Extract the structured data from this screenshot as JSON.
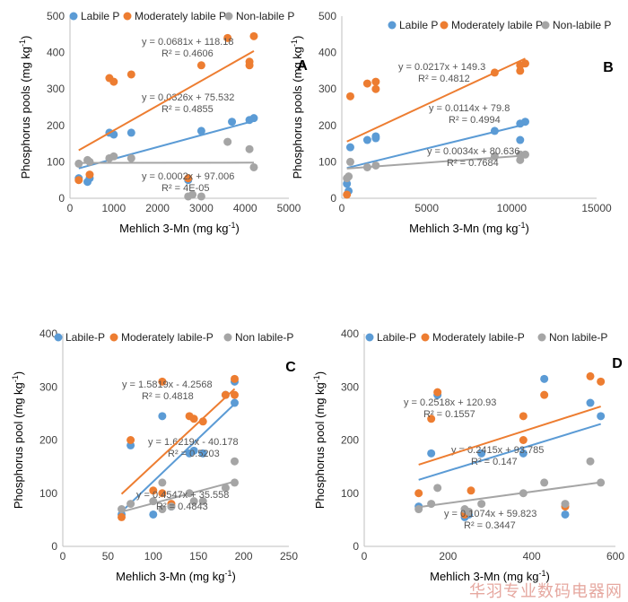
{
  "colors": {
    "labile": "#5b9bd5",
    "moderate": "#ed7d31",
    "nonlabile": "#a5a5a5"
  },
  "watermark": "华羽专业数码电器网",
  "chart_data": [
    {
      "panel": "A",
      "type": "scatter",
      "legend": [
        "Labile P",
        "Moderately labile P",
        "Non-labile P"
      ],
      "ylabel": "Phosphorus pools (mg kg-1)",
      "xlabel": "Mehlich 3-Mn (mg kg-1)",
      "xlim": [
        0,
        5000
      ],
      "ylim": [
        0,
        500
      ],
      "xticks": [
        0,
        1000,
        2000,
        3000,
        4000,
        5000
      ],
      "yticks": [
        0,
        100,
        200,
        300,
        400,
        500
      ],
      "series": [
        {
          "name": "Labile P",
          "color_key": "labile",
          "points": [
            [
              200,
              55
            ],
            [
              400,
              45
            ],
            [
              450,
              55
            ],
            [
              900,
              180
            ],
            [
              1000,
              175
            ],
            [
              1400,
              180
            ],
            [
              2700,
              50
            ],
            [
              3000,
              185
            ],
            [
              3700,
              210
            ],
            [
              4100,
              215
            ],
            [
              4200,
              220
            ]
          ],
          "fit": {
            "slope": 0.0326,
            "intercept": 75.532,
            "x0": 200,
            "x1": 4200
          },
          "eq": "y = 0.0326x + 75.532",
          "r2": "R² = 0.4855"
        },
        {
          "name": "Moderately labile P",
          "color_key": "moderate",
          "points": [
            [
              200,
              50
            ],
            [
              450,
              65
            ],
            [
              900,
              330
            ],
            [
              1000,
              320
            ],
            [
              1400,
              340
            ],
            [
              2700,
              55
            ],
            [
              3000,
              365
            ],
            [
              3600,
              440
            ],
            [
              4100,
              375
            ],
            [
              4100,
              365
            ],
            [
              4200,
              445
            ]
          ],
          "fit": {
            "slope": 0.0681,
            "intercept": 118.18,
            "x0": 200,
            "x1": 4200
          },
          "eq": "y = 0.0681x + 118.18",
          "r2": "R² = 0.4606"
        },
        {
          "name": "Non-labile P",
          "color_key": "nonlabile",
          "points": [
            [
              200,
              95
            ],
            [
              400,
              105
            ],
            [
              450,
              100
            ],
            [
              900,
              110
            ],
            [
              1000,
              115
            ],
            [
              1400,
              110
            ],
            [
              2700,
              5
            ],
            [
              2800,
              10
            ],
            [
              3000,
              5
            ],
            [
              3600,
              155
            ],
            [
              4100,
              135
            ],
            [
              4200,
              85
            ]
          ],
          "fit": {
            "slope": 0.0002,
            "intercept": 97.006,
            "x0": 200,
            "x1": 4200
          },
          "eq": "y = 0.0002x + 97.006",
          "r2": "R² = 4E-05"
        }
      ]
    },
    {
      "panel": "B",
      "type": "scatter",
      "legend": [
        "Labile P",
        "Moderately labile P",
        "Non-labile P"
      ],
      "ylabel": "Phosphorus pools (mg kg-1)",
      "xlabel": "Mehlich 3-Mn (mg kg-1)",
      "xlim": [
        0,
        15000
      ],
      "ylim": [
        0,
        500
      ],
      "xticks": [
        0,
        5000,
        10000,
        15000
      ],
      "yticks": [
        0,
        100,
        200,
        300,
        400,
        500
      ],
      "series": [
        {
          "name": "Labile P",
          "color_key": "labile",
          "points": [
            [
              300,
              40
            ],
            [
              400,
              20
            ],
            [
              500,
              140
            ],
            [
              1500,
              160
            ],
            [
              2000,
              170
            ],
            [
              2000,
              165
            ],
            [
              9000,
              185
            ],
            [
              10500,
              205
            ],
            [
              10500,
              160
            ],
            [
              10800,
              210
            ]
          ],
          "fit": {
            "slope": 0.0114,
            "intercept": 79.8,
            "x0": 300,
            "x1": 10800
          },
          "eq": "y = 0.0114x + 79.8",
          "r2": "R² = 0.4994"
        },
        {
          "name": "Moderately labile P",
          "color_key": "moderate",
          "points": [
            [
              300,
              10
            ],
            [
              500,
              280
            ],
            [
              1500,
              315
            ],
            [
              2000,
              300
            ],
            [
              2000,
              320
            ],
            [
              9000,
              345
            ],
            [
              10500,
              350
            ],
            [
              10500,
              365
            ],
            [
              10800,
              370
            ]
          ],
          "fit": {
            "slope": 0.0217,
            "intercept": 149.3,
            "x0": 300,
            "x1": 10800
          },
          "eq": "y = 0.0217x + 149.3",
          "r2": "R² = 0.4812"
        },
        {
          "name": "Non-labile P",
          "color_key": "nonlabile",
          "points": [
            [
              300,
              55
            ],
            [
              400,
              60
            ],
            [
              500,
              100
            ],
            [
              1500,
              85
            ],
            [
              2000,
              90
            ],
            [
              9000,
              115
            ],
            [
              10500,
              120
            ],
            [
              10500,
              105
            ],
            [
              10800,
              120
            ]
          ],
          "fit": {
            "slope": 0.0034,
            "intercept": 80.636,
            "x0": 300,
            "x1": 10800
          },
          "eq": "y = 0.0034x + 80.636",
          "r2": "R² = 0.7684"
        }
      ]
    },
    {
      "panel": "C",
      "type": "scatter",
      "legend": [
        "Labile-P",
        "Moderately labile-P",
        "Non labile-P"
      ],
      "ylabel": "Phosphorus pool (mg kg-1)",
      "xlabel": "Mehlich 3-Mn (mg kg-1)",
      "xlim": [
        0,
        250
      ],
      "ylim": [
        0,
        400
      ],
      "xticks": [
        0,
        50,
        100,
        150,
        200,
        250
      ],
      "yticks": [
        0,
        100,
        200,
        300,
        400
      ],
      "series": [
        {
          "name": "Labile-P",
          "color_key": "labile",
          "points": [
            [
              65,
              60
            ],
            [
              75,
              190
            ],
            [
              100,
              60
            ],
            [
              110,
              245
            ],
            [
              120,
              75
            ],
            [
              140,
              175
            ],
            [
              145,
              180
            ],
            [
              155,
              175
            ],
            [
              180,
              285
            ],
            [
              190,
              270
            ],
            [
              190,
              310
            ]
          ],
          "fit": {
            "slope": 1.6219,
            "intercept": -40.178,
            "x0": 65,
            "x1": 190
          },
          "eq": "y = 1.6219x - 40.178",
          "r2": "R² = 0.5203"
        },
        {
          "name": "Moderately labile-P",
          "color_key": "moderate",
          "points": [
            [
              65,
              55
            ],
            [
              75,
              200
            ],
            [
              100,
              105
            ],
            [
              110,
              100
            ],
            [
              110,
              310
            ],
            [
              120,
              80
            ],
            [
              140,
              245
            ],
            [
              145,
              240
            ],
            [
              155,
              235
            ],
            [
              180,
              285
            ],
            [
              190,
              285
            ],
            [
              190,
              315
            ]
          ],
          "fit": {
            "slope": 1.5819,
            "intercept": -4.2568,
            "x0": 65,
            "x1": 190
          },
          "eq": "y = 1.5819x - 4.2568",
          "r2": "R² = 0.4818"
        },
        {
          "name": "Non labile-P",
          "color_key": "nonlabile",
          "points": [
            [
              65,
              70
            ],
            [
              75,
              80
            ],
            [
              100,
              85
            ],
            [
              110,
              70
            ],
            [
              110,
              120
            ],
            [
              120,
              75
            ],
            [
              140,
              100
            ],
            [
              145,
              85
            ],
            [
              155,
              85
            ],
            [
              180,
              110
            ],
            [
              190,
              120
            ],
            [
              190,
              160
            ]
          ],
          "fit": {
            "slope": 0.4547,
            "intercept": 35.558,
            "x0": 65,
            "x1": 190
          },
          "eq": "y = 0.4547x + 35.558",
          "r2": "R² = 0.4843"
        }
      ]
    },
    {
      "panel": "D",
      "type": "scatter",
      "legend": [
        "Labile-P",
        "Moderately labile-P",
        "Non labile-P"
      ],
      "ylabel": "Phosphorus pool (mg kg-1)",
      "xlabel": "Mehlich 3-Mn (mg kg-1)",
      "xlim": [
        0,
        600
      ],
      "ylim": [
        0,
        400
      ],
      "xticks": [
        0,
        200,
        400,
        600
      ],
      "yticks": [
        0,
        100,
        200,
        300,
        400
      ],
      "series": [
        {
          "name": "Labile-P",
          "color_key": "labile",
          "points": [
            [
              130,
              75
            ],
            [
              160,
              175
            ],
            [
              175,
              285
            ],
            [
              240,
              55
            ],
            [
              250,
              60
            ],
            [
              280,
              175
            ],
            [
              380,
              175
            ],
            [
              430,
              315
            ],
            [
              480,
              60
            ],
            [
              540,
              270
            ],
            [
              565,
              245
            ]
          ],
          "fit": {
            "slope": 0.2415,
            "intercept": 93.785,
            "x0": 130,
            "x1": 565
          },
          "eq": "y = 0.2415x + 93.785",
          "r2": "R² = 0.147"
        },
        {
          "name": "Moderately labile-P",
          "color_key": "moderate",
          "points": [
            [
              130,
              100
            ],
            [
              160,
              240
            ],
            [
              175,
              290
            ],
            [
              240,
              60
            ],
            [
              255,
              105
            ],
            [
              380,
              245
            ],
            [
              380,
              200
            ],
            [
              430,
              285
            ],
            [
              480,
              75
            ],
            [
              540,
              320
            ],
            [
              565,
              310
            ]
          ],
          "fit": {
            "slope": 0.2518,
            "intercept": 120.93,
            "x0": 130,
            "x1": 565
          },
          "eq": "y = 0.2518x + 120.93",
          "r2": "R² = 0.1557"
        },
        {
          "name": "Non labile-P",
          "color_key": "nonlabile",
          "points": [
            [
              130,
              70
            ],
            [
              160,
              80
            ],
            [
              175,
              110
            ],
            [
              240,
              70
            ],
            [
              250,
              65
            ],
            [
              280,
              80
            ],
            [
              380,
              100
            ],
            [
              430,
              120
            ],
            [
              480,
              80
            ],
            [
              540,
              160
            ],
            [
              565,
              120
            ]
          ],
          "fit": {
            "slope": 0.1074,
            "intercept": 59.823,
            "x0": 130,
            "x1": 565
          },
          "eq": "y = 0.1074x + 59.823",
          "r2": "R² = 0.3447"
        }
      ]
    }
  ]
}
